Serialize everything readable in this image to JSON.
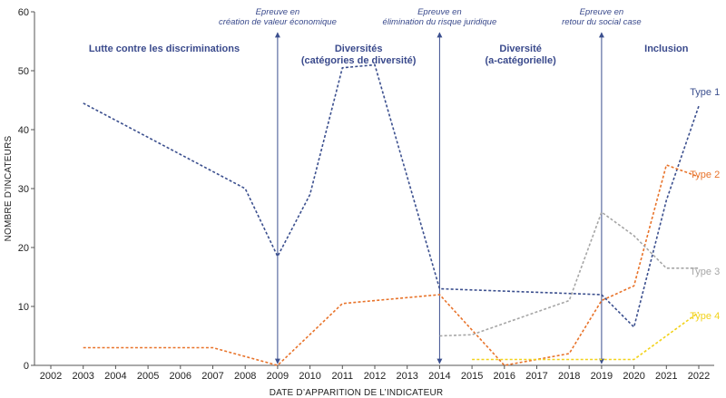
{
  "chart_data": {
    "type": "line",
    "xlabel": "DATE D’APPARITION DE L’INDICATEUR",
    "ylabel": "NOMBRE D’INCATEURS",
    "xlim": [
      2002,
      2022
    ],
    "ylim": [
      0,
      60
    ],
    "x_ticks": [
      2002,
      2003,
      2004,
      2005,
      2006,
      2007,
      2008,
      2009,
      2010,
      2011,
      2012,
      2013,
      2014,
      2015,
      2016,
      2017,
      2018,
      2019,
      2020,
      2021,
      2022
    ],
    "y_ticks": [
      0,
      10,
      20,
      30,
      40,
      50,
      60
    ],
    "grid": false,
    "series": [
      {
        "name": "Type 1",
        "color": "#3b4f8e",
        "points": [
          [
            2003,
            44.5
          ],
          [
            2008,
            30
          ],
          [
            2009,
            18.5
          ],
          [
            2010,
            29
          ],
          [
            2011,
            50.5
          ],
          [
            2012,
            51
          ],
          [
            2014,
            13
          ],
          [
            2019,
            12
          ],
          [
            2020,
            6.5
          ],
          [
            2021,
            28
          ],
          [
            2022,
            44
          ]
        ]
      },
      {
        "name": "Type 2",
        "color": "#e8732a",
        "points": [
          [
            2003,
            3
          ],
          [
            2007,
            3
          ],
          [
            2009,
            0
          ],
          [
            2011,
            10.5
          ],
          [
            2014,
            12
          ],
          [
            2016,
            0
          ],
          [
            2018,
            2
          ],
          [
            2019,
            11
          ],
          [
            2020,
            13.5
          ],
          [
            2021,
            34
          ],
          [
            2022,
            32
          ]
        ]
      },
      {
        "name": "Type 3",
        "color": "#a6a6a6",
        "points": [
          [
            2014,
            5
          ],
          [
            2015,
            5.2
          ],
          [
            2018,
            11
          ],
          [
            2019,
            26
          ],
          [
            2020,
            22
          ],
          [
            2021,
            16.5
          ],
          [
            2022,
            16.5
          ]
        ]
      },
      {
        "name": "Type 4",
        "color": "#f2d21a",
        "points": [
          [
            2015,
            1
          ],
          [
            2020,
            1
          ],
          [
            2022,
            9
          ]
        ]
      }
    ],
    "events": [
      {
        "x": 2009,
        "lines": [
          "Epreuve en",
          "création de valeur économique"
        ]
      },
      {
        "x": 2014,
        "lines": [
          "Epreuve en",
          "élimination du risque juridique"
        ]
      },
      {
        "x": 2019,
        "lines": [
          "Epreuve en",
          "retour du social case"
        ]
      }
    ],
    "periods": [
      {
        "x_center": 2005.5,
        "lines": [
          "Lutte contre les discriminations"
        ]
      },
      {
        "x_center": 2011.5,
        "lines": [
          "Diversités",
          "(catégories de diversité)"
        ]
      },
      {
        "x_center": 2016.5,
        "lines": [
          "Diversité",
          "(a-catégorielle)"
        ]
      },
      {
        "x_center": 2021,
        "lines": [
          "Inclusion"
        ]
      }
    ],
    "colors": {
      "event_line": "#3b4f8e",
      "period_text": "#3a4a8c",
      "axis": "#555555"
    }
  }
}
